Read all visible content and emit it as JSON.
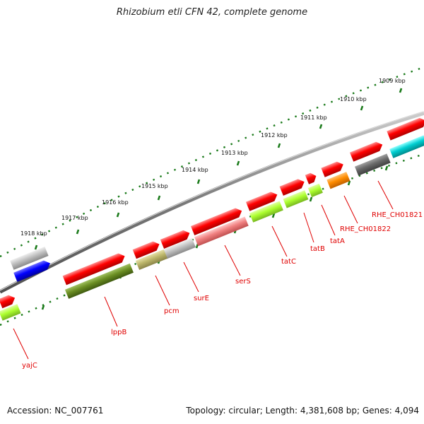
{
  "title": "Rhizobium etli CFN 42, complete genome",
  "footer": {
    "accession": "Accession: NC_007761",
    "summary": "Topology: circular; Length: 4,381,608 bp; Genes: 4,094"
  },
  "scale_labels": [
    "1909 kbp",
    "1910 kbp",
    "1911 kbp",
    "1912 kbp",
    "1913 kbp",
    "1914 kbp",
    "1915 kbp",
    "1916 kbp",
    "1917 kbp",
    "1918 kbp"
  ],
  "gene_labels": [
    "RHE_CH01821",
    "RHE_CH01822",
    "tatA",
    "tatB",
    "tatC",
    "serS",
    "surE",
    "pcm",
    "lppB",
    "yajC"
  ],
  "colors": {
    "backbone": "#888888",
    "ticks": "#1a7a1a",
    "label": "#e00000",
    "red": "#ff0000",
    "green": "#adff2f",
    "olive_green": "#6b8e23",
    "khaki": "#bdb76b",
    "salmon": "#f08080",
    "grey": "#c0c0c0",
    "dark_grey": "#696969",
    "orange": "#ff8c00",
    "blue": "#0000ff",
    "cyan": "#00ced1"
  }
}
